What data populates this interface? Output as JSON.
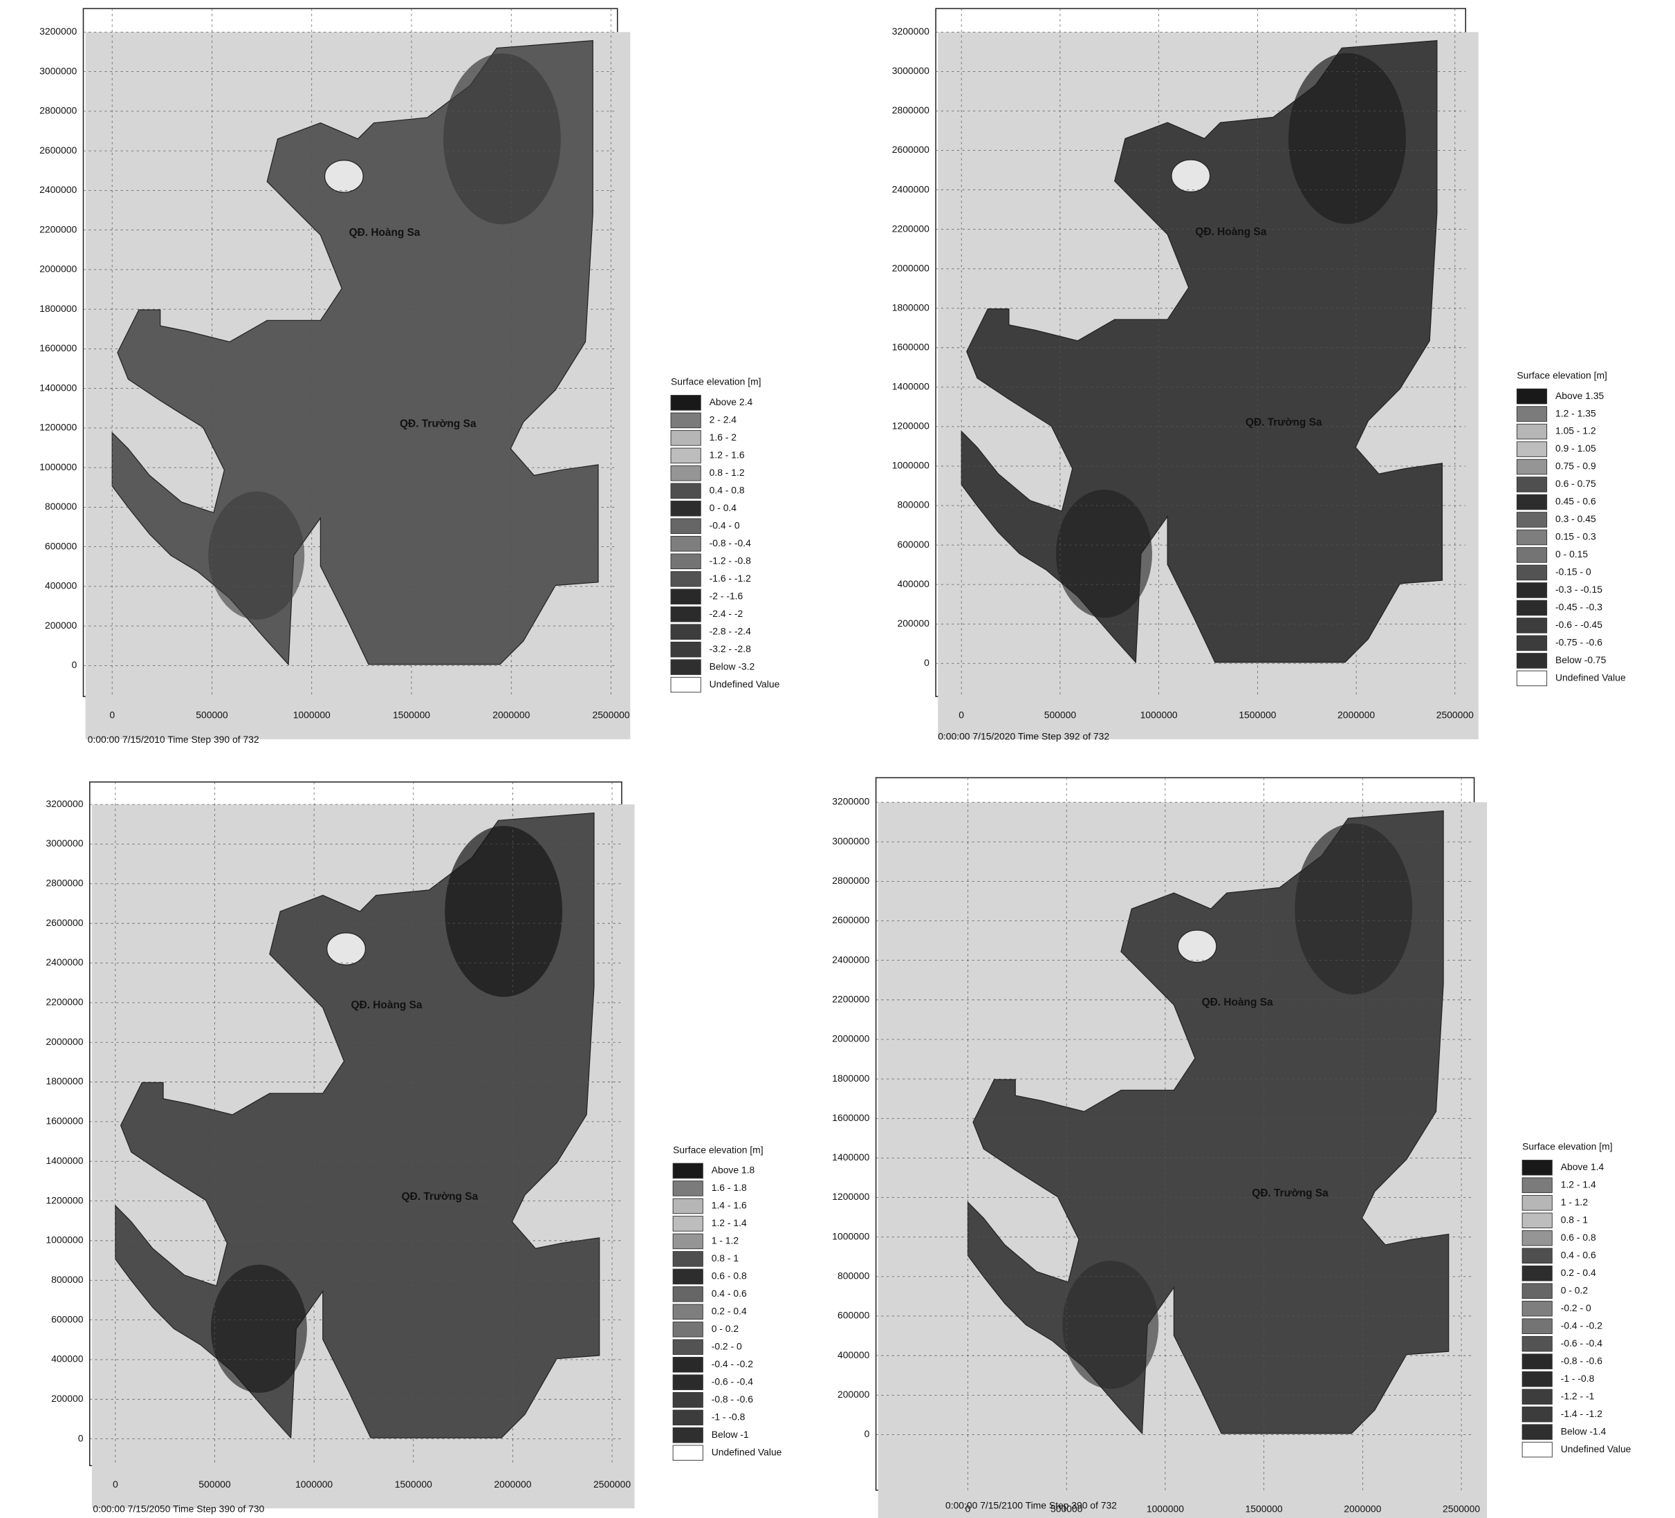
{
  "panels": [
    {
      "yticks": [
        3200000,
        3000000,
        2800000,
        2600000,
        2400000,
        2200000,
        2000000,
        1800000,
        1600000,
        1400000,
        1200000,
        1000000,
        800000,
        600000,
        400000,
        200000,
        0
      ],
      "xticks": [
        0,
        500000,
        1000000,
        1500000,
        2000000,
        2500000
      ],
      "labels": [
        "QĐ. Hoàng Sa",
        "QĐ. Trường Sa"
      ],
      "legend": {
        "title": "Surface elevation [m]",
        "items": [
          "Above 2.4",
          "2 - 2.4",
          "1.6 - 2",
          "1.2 - 1.6",
          "0.8 - 1.2",
          "0.4 - 0.8",
          "0 - 0.4",
          "-0.4 - 0",
          "-0.8 - -0.4",
          "-1.2 - -0.8",
          "-1.6 - -1.2",
          "-2 - -1.6",
          "-2.4 - -2",
          "-2.8 - -2.4",
          "-3.2 - -2.8",
          "Below -3.2",
          "Undefined Value"
        ]
      },
      "footer": "0:00:00 7/15/2010  Time Step 390 of 732"
    },
    {
      "yticks": [
        3200000,
        3000000,
        2800000,
        2600000,
        2400000,
        2200000,
        2000000,
        1800000,
        1600000,
        1400000,
        1200000,
        1000000,
        800000,
        600000,
        400000,
        200000,
        0
      ],
      "xticks": [
        0,
        500000,
        1000000,
        1500000,
        2000000,
        2500000
      ],
      "labels": [
        "QĐ. Hoàng Sa",
        "QĐ. Trường Sa"
      ],
      "legend": {
        "title": "Surface elevation [m]",
        "items": [
          "Above 1.35",
          "1.2 - 1.35",
          "1.05 - 1.2",
          "0.9 - 1.05",
          "0.75 - 0.9",
          "0.6 - 0.75",
          "0.45 - 0.6",
          "0.3 - 0.45",
          "0.15 - 0.3",
          "0 - 0.15",
          "-0.15 - 0",
          "-0.3 - -0.15",
          "-0.45 - -0.3",
          "-0.6 - -0.45",
          "-0.75 - -0.6",
          "Below -0.75",
          "Undefined Value"
        ]
      },
      "footer": "0:00:00 7/15/2020  Time Step 392 of 732"
    },
    {
      "yticks": [
        3200000,
        3000000,
        2800000,
        2600000,
        2400000,
        2200000,
        2000000,
        1800000,
        1600000,
        1400000,
        1200000,
        1000000,
        800000,
        600000,
        400000,
        200000,
        0
      ],
      "xticks": [
        0,
        500000,
        1000000,
        1500000,
        2000000,
        2500000
      ],
      "labels": [
        "QĐ. Hoàng Sa",
        "QĐ. Trường Sa"
      ],
      "legend": {
        "title": "Surface elevation [m]",
        "items": [
          "Above 1.8",
          "1.6 - 1.8",
          "1.4 - 1.6",
          "1.2 - 1.4",
          "1 - 1.2",
          "0.8 - 1",
          "0.6 - 0.8",
          "0.4 - 0.6",
          "0.2 - 0.4",
          "0 - 0.2",
          "-0.2 - 0",
          "-0.4 - -0.2",
          "-0.6 - -0.4",
          "-0.8 - -0.6",
          "-1 - -0.8",
          "Below -1",
          "Undefined Value"
        ]
      },
      "footer": "0:00:00 7/15/2050  Time Step 390 of 730"
    },
    {
      "yticks": [
        3200000,
        3000000,
        2800000,
        2600000,
        2400000,
        2200000,
        2000000,
        1800000,
        1600000,
        1400000,
        1200000,
        1000000,
        800000,
        600000,
        400000,
        200000,
        0
      ],
      "xticks": [
        0,
        500000,
        1000000,
        1500000,
        2000000,
        2500000
      ],
      "labels": [
        "QĐ. Hoàng Sa",
        "QĐ. Trường Sa"
      ],
      "legend": {
        "title": "Surface elevation [m]",
        "items": [
          "Above 1.4",
          "1.2 - 1.4",
          "1 - 1.2",
          "0.8 - 1",
          "0.6 - 0.8",
          "0.4 - 0.6",
          "0.2 - 0.4",
          "0 - 0.2",
          "-0.2 - 0",
          "-0.4 - -0.2",
          "-0.6 - -0.4",
          "-0.8 - -0.6",
          "-1 - -0.8",
          "-1.2 - -1",
          "-1.4 - -1.2",
          "Below -1.4",
          "Undefined Value"
        ]
      },
      "footer": "0:00:00 7/15/2100  Time Step 390 of 732"
    }
  ]
}
